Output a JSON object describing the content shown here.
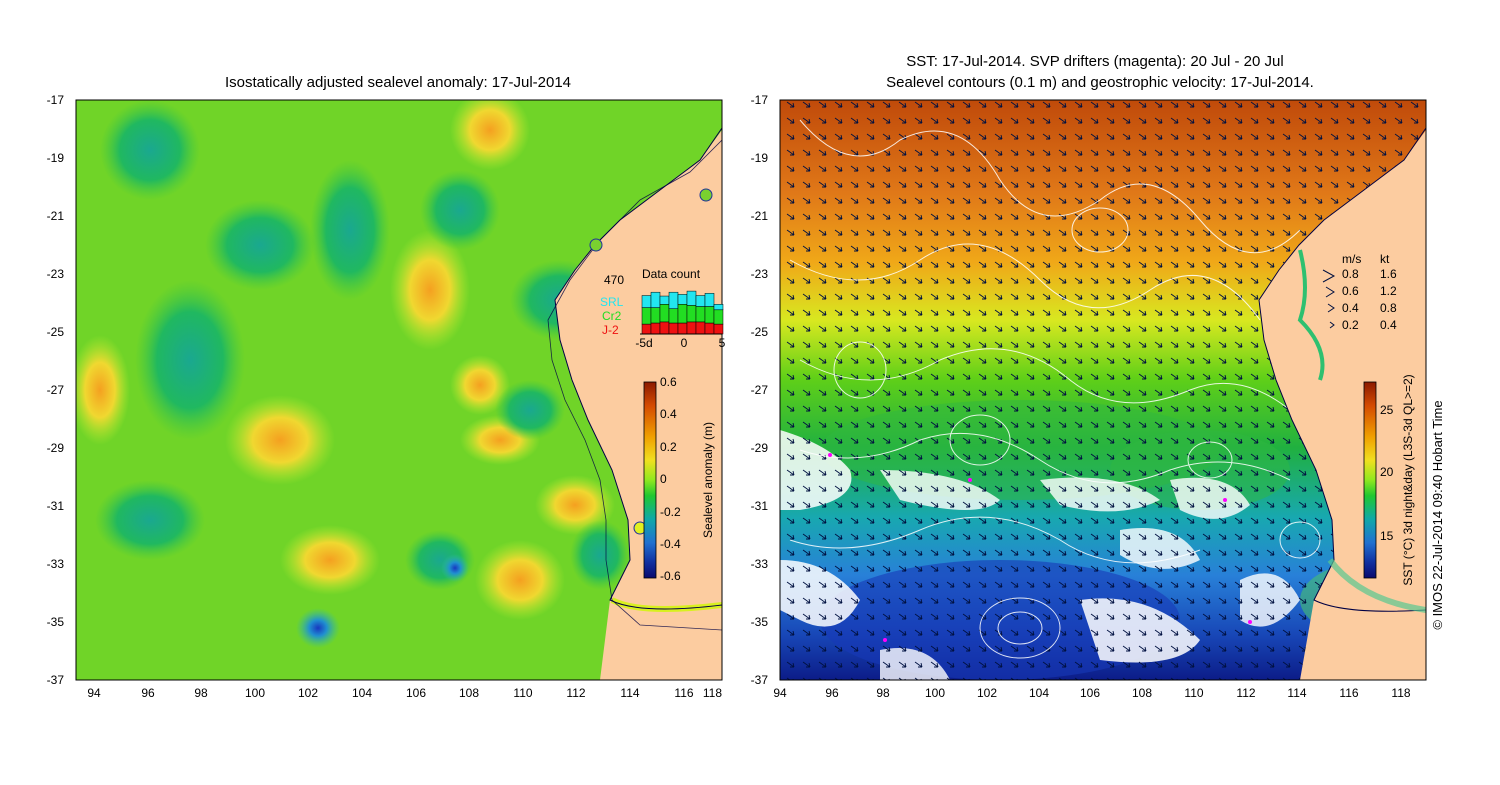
{
  "left_panel": {
    "title": "Isostatically adjusted sealevel anomaly: 17-Jul-2014",
    "x_ticks": [
      "94",
      "96",
      "98",
      "100",
      "102",
      "104",
      "106",
      "108",
      "110",
      "112",
      "114",
      "116",
      "118"
    ],
    "y_ticks": [
      "-17",
      "-19",
      "-21",
      "-23",
      "-25",
      "-27",
      "-29",
      "-31",
      "-33",
      "-35",
      "-37"
    ],
    "data_count": {
      "title": "Data count",
      "max_label": "470",
      "legend": [
        {
          "label": "SRL",
          "color": "#22e6f0"
        },
        {
          "label": "Cr2",
          "color": "#22dd22"
        },
        {
          "label": "J-2",
          "color": "#ee1111"
        }
      ],
      "axis_labels": [
        "-5d",
        "0",
        "5"
      ],
      "bars": [
        {
          "srl": 0.22,
          "cr2": 0.3,
          "j2": 0.18
        },
        {
          "srl": 0.28,
          "cr2": 0.28,
          "j2": 0.2
        },
        {
          "srl": 0.15,
          "cr2": 0.32,
          "j2": 0.22
        },
        {
          "srl": 0.3,
          "cr2": 0.26,
          "j2": 0.2
        },
        {
          "srl": 0.18,
          "cr2": 0.34,
          "j2": 0.2
        },
        {
          "srl": 0.26,
          "cr2": 0.3,
          "j2": 0.22
        },
        {
          "srl": 0.2,
          "cr2": 0.28,
          "j2": 0.22
        },
        {
          "srl": 0.24,
          "cr2": 0.3,
          "j2": 0.2
        },
        {
          "srl": 0.1,
          "cr2": 0.26,
          "j2": 0.18
        }
      ]
    },
    "colorbar": {
      "label": "Sealevel anomaly (m)",
      "ticks": [
        "0.6",
        "0.4",
        "0.2",
        "0",
        "-0.2",
        "-0.4",
        "-0.6"
      ],
      "colors": [
        "#8b1a00",
        "#d44a00",
        "#f0a000",
        "#f0e020",
        "#b8f030",
        "#58d810",
        "#10b840",
        "#10a8a8",
        "#2070d0",
        "#1030a0",
        "#0a0a6e"
      ]
    }
  },
  "right_panel": {
    "title_line1": "SST: 17-Jul-2014. SVP drifters (magenta): 20 Jul - 20 Jul",
    "title_line2": "Sealevel contours (0.1 m) and geostrophic velocity: 17-Jul-2014.",
    "x_ticks": [
      "94",
      "96",
      "98",
      "100",
      "102",
      "104",
      "106",
      "108",
      "110",
      "112",
      "114",
      "116",
      "118"
    ],
    "y_ticks": [
      "-17",
      "-19",
      "-21",
      "-23",
      "-25",
      "-27",
      "-29",
      "-31",
      "-33",
      "-35",
      "-37"
    ],
    "velocity_legend": {
      "header_ms": "m/s",
      "header_kt": "kt",
      "rows": [
        {
          "ms": "0.8",
          "kt": "1.6"
        },
        {
          "ms": "0.6",
          "kt": "1.2"
        },
        {
          "ms": "0.4",
          "kt": "0.8"
        },
        {
          "ms": "0.2",
          "kt": "0.4"
        }
      ]
    },
    "colorbar": {
      "label": "SST (°C) 3d night&day (L3S-3d QL>=2)",
      "ticks": [
        "25",
        "20",
        "15"
      ],
      "colors": [
        "#8b1a00",
        "#d44a00",
        "#f0a000",
        "#f0e020",
        "#b8f030",
        "#58d810",
        "#10b840",
        "#10a8a8",
        "#2070d0",
        "#1030a0",
        "#0a0a6e"
      ]
    }
  },
  "credit": "© IMOS 22-Jul-2014 09:40 Hobart Time",
  "colors": {
    "land": "#fccca0",
    "ocean_mid": "#6cd828",
    "coast_line": "#000044",
    "warm": "#d85a10",
    "cool": "#1a60c8"
  }
}
